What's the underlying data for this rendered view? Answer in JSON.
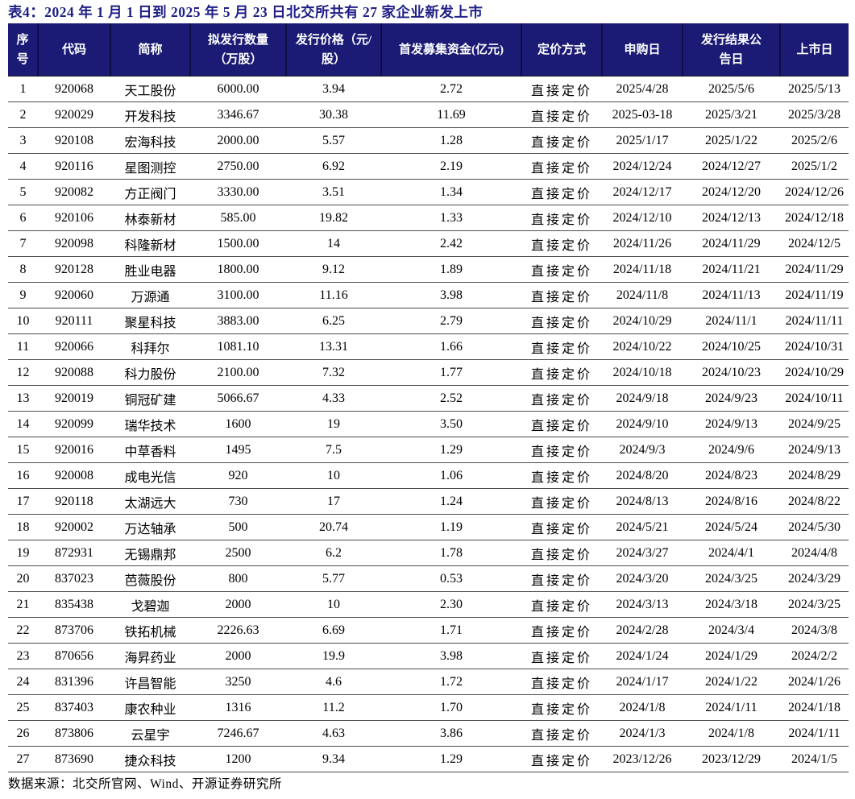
{
  "title": "表4：2024 年 1 月 1 日到 2025 年 5 月 23 日北交所共有 27 家企业新发上市",
  "footer": "数据来源：北交所官网、Wind、开源证券研究所",
  "colors": {
    "header_bg": "#1b1b75",
    "header_text": "#ffffff",
    "title_text": "#1f1f87",
    "row_divider": "#4d4d4d"
  },
  "chart_data": {
    "type": "table",
    "title": "表4：2024 年 1 月 1 日到 2025 年 5 月 23 日北交所共有 27 家企业新发上市",
    "headers": [
      "序\n号",
      "代码",
      "简称",
      "拟发行数量\n（万股）",
      "发行价格（元/\n股）",
      "首发募集资金(亿元)",
      "定价方式",
      "申购日",
      "发行结果公\n告日",
      "上市日"
    ],
    "rows": [
      [
        "1",
        "920068",
        "天工股份",
        "6000.00",
        "3.94",
        "2.72",
        "直接定价",
        "2025/4/28",
        "2025/5/6",
        "2025/5/13"
      ],
      [
        "2",
        "920029",
        "开发科技",
        "3346.67",
        "30.38",
        "11.69",
        "直接定价",
        "2025-03-18",
        "2025/3/21",
        "2025/3/28"
      ],
      [
        "3",
        "920108",
        "宏海科技",
        "2000.00",
        "5.57",
        "1.28",
        "直接定价",
        "2025/1/17",
        "2025/1/22",
        "2025/2/6"
      ],
      [
        "4",
        "920116",
        "星图测控",
        "2750.00",
        "6.92",
        "2.19",
        "直接定价",
        "2024/12/24",
        "2024/12/27",
        "2025/1/2"
      ],
      [
        "5",
        "920082",
        "方正阀门",
        "3330.00",
        "3.51",
        "1.34",
        "直接定价",
        "2024/12/17",
        "2024/12/20",
        "2024/12/26"
      ],
      [
        "6",
        "920106",
        "林泰新材",
        "585.00",
        "19.82",
        "1.33",
        "直接定价",
        "2024/12/10",
        "2024/12/13",
        "2024/12/18"
      ],
      [
        "7",
        "920098",
        "科隆新材",
        "1500.00",
        "14",
        "2.42",
        "直接定价",
        "2024/11/26",
        "2024/11/29",
        "2024/12/5"
      ],
      [
        "8",
        "920128",
        "胜业电器",
        "1800.00",
        "9.12",
        "1.89",
        "直接定价",
        "2024/11/18",
        "2024/11/21",
        "2024/11/29"
      ],
      [
        "9",
        "920060",
        "万源通",
        "3100.00",
        "11.16",
        "3.98",
        "直接定价",
        "2024/11/8",
        "2024/11/13",
        "2024/11/19"
      ],
      [
        "10",
        "920111",
        "聚星科技",
        "3883.00",
        "6.25",
        "2.79",
        "直接定价",
        "2024/10/29",
        "2024/11/1",
        "2024/11/11"
      ],
      [
        "11",
        "920066",
        "科拜尔",
        "1081.10",
        "13.31",
        "1.66",
        "直接定价",
        "2024/10/22",
        "2024/10/25",
        "2024/10/31"
      ],
      [
        "12",
        "920088",
        "科力股份",
        "2100.00",
        "7.32",
        "1.77",
        "直接定价",
        "2024/10/18",
        "2024/10/23",
        "2024/10/29"
      ],
      [
        "13",
        "920019",
        "铜冠矿建",
        "5066.67",
        "4.33",
        "2.52",
        "直接定价",
        "2024/9/18",
        "2024/9/23",
        "2024/10/11"
      ],
      [
        "14",
        "920099",
        "瑞华技术",
        "1600",
        "19",
        "3.50",
        "直接定价",
        "2024/9/10",
        "2024/9/13",
        "2024/9/25"
      ],
      [
        "15",
        "920016",
        "中草香料",
        "1495",
        "7.5",
        "1.29",
        "直接定价",
        "2024/9/3",
        "2024/9/6",
        "2024/9/13"
      ],
      [
        "16",
        "920008",
        "成电光信",
        "920",
        "10",
        "1.06",
        "直接定价",
        "2024/8/20",
        "2024/8/23",
        "2024/8/29"
      ],
      [
        "17",
        "920118",
        "太湖远大",
        "730",
        "17",
        "1.24",
        "直接定价",
        "2024/8/13",
        "2024/8/16",
        "2024/8/22"
      ],
      [
        "18",
        "920002",
        "万达轴承",
        "500",
        "20.74",
        "1.19",
        "直接定价",
        "2024/5/21",
        "2024/5/24",
        "2024/5/30"
      ],
      [
        "19",
        "872931",
        "无锡鼎邦",
        "2500",
        "6.2",
        "1.78",
        "直接定价",
        "2024/3/27",
        "2024/4/1",
        "2024/4/8"
      ],
      [
        "20",
        "837023",
        "芭薇股份",
        "800",
        "5.77",
        "0.53",
        "直接定价",
        "2024/3/20",
        "2024/3/25",
        "2024/3/29"
      ],
      [
        "21",
        "835438",
        "戈碧迦",
        "2000",
        "10",
        "2.30",
        "直接定价",
        "2024/3/13",
        "2024/3/18",
        "2024/3/25"
      ],
      [
        "22",
        "873706",
        "铁拓机械",
        "2226.63",
        "6.69",
        "1.71",
        "直接定价",
        "2024/2/28",
        "2024/3/4",
        "2024/3/8"
      ],
      [
        "23",
        "870656",
        "海昇药业",
        "2000",
        "19.9",
        "3.98",
        "直接定价",
        "2024/1/24",
        "2024/1/29",
        "2024/2/2"
      ],
      [
        "24",
        "831396",
        "许昌智能",
        "3250",
        "4.6",
        "1.72",
        "直接定价",
        "2024/1/17",
        "2024/1/22",
        "2024/1/26"
      ],
      [
        "25",
        "837403",
        "康农种业",
        "1316",
        "11.2",
        "1.70",
        "直接定价",
        "2024/1/8",
        "2024/1/11",
        "2024/1/18"
      ],
      [
        "26",
        "873806",
        "云星宇",
        "7246.67",
        "4.63",
        "3.86",
        "直接定价",
        "2024/1/3",
        "2024/1/8",
        "2024/1/11"
      ],
      [
        "27",
        "873690",
        "捷众科技",
        "1200",
        "9.34",
        "1.29",
        "直接定价",
        "2023/12/26",
        "2023/12/29",
        "2024/1/5"
      ]
    ]
  }
}
